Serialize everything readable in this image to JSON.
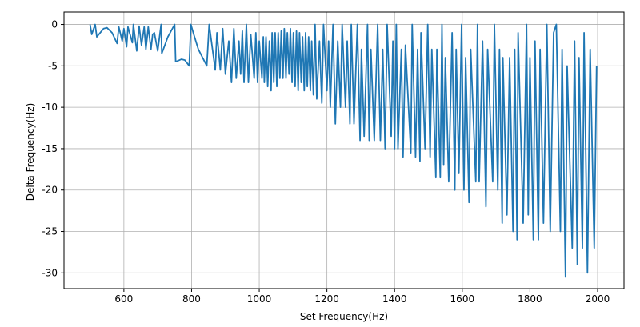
{
  "chart_data": {
    "type": "line",
    "xlabel": "Set Frequency(Hz)",
    "ylabel": "Delta Frequency(Hz)",
    "x": [
      500,
      505,
      515,
      520,
      540,
      550,
      565,
      580,
      585,
      595,
      600,
      608,
      612,
      625,
      628,
      638,
      645,
      652,
      660,
      665,
      672,
      680,
      685,
      690,
      700,
      710,
      712,
      730,
      750,
      753,
      770,
      780,
      793,
      798,
      805,
      820,
      845,
      852,
      870,
      875,
      885,
      892,
      900,
      910,
      918,
      925,
      932,
      940,
      945,
      950,
      955,
      962,
      968,
      975,
      985,
      990,
      995,
      1000,
      1008,
      1012,
      1015,
      1020,
      1025,
      1030,
      1035,
      1038,
      1043,
      1047,
      1052,
      1056,
      1061,
      1065,
      1070,
      1074,
      1079,
      1083,
      1088,
      1092,
      1097,
      1101,
      1106,
      1110,
      1115,
      1119,
      1124,
      1128,
      1133,
      1137,
      1142,
      1146,
      1151,
      1155,
      1160,
      1165,
      1170,
      1178,
      1185,
      1190,
      1200,
      1205,
      1210,
      1218,
      1225,
      1232,
      1240,
      1245,
      1255,
      1260,
      1268,
      1272,
      1280,
      1290,
      1298,
      1302,
      1310,
      1320,
      1325,
      1330,
      1340,
      1350,
      1358,
      1365,
      1372,
      1378,
      1390,
      1395,
      1400,
      1405,
      1410,
      1420,
      1425,
      1432,
      1448,
      1452,
      1462,
      1468,
      1475,
      1478,
      1490,
      1498,
      1505,
      1510,
      1522,
      1525,
      1535,
      1540,
      1545,
      1550,
      1560,
      1570,
      1578,
      1582,
      1590,
      1598,
      1605,
      1610,
      1620,
      1625,
      1640,
      1645,
      1650,
      1660,
      1670,
      1675,
      1690,
      1695,
      1705,
      1710,
      1718,
      1720,
      1732,
      1740,
      1750,
      1755,
      1762,
      1765,
      1780,
      1790,
      1795,
      1800,
      1810,
      1815,
      1825,
      1830,
      1840,
      1850,
      1860,
      1870,
      1878,
      1890,
      1895,
      1905,
      1910,
      1925,
      1932,
      1940,
      1945,
      1955,
      1960,
      1970,
      1978,
      1990,
      1997
    ],
    "series": [
      {
        "color": "#1f77b4",
        "values": [
          0,
          -1.2,
          0,
          -1.5,
          -0.5,
          -0.4,
          -1,
          -2.3,
          -0.3,
          -2,
          -0.5,
          -2.7,
          -0.3,
          -2.2,
          0,
          -3.2,
          -0.2,
          -2.5,
          -0.3,
          -3,
          -0.3,
          -3,
          -1.2,
          -1,
          -3.2,
          0,
          -3.5,
          -1.5,
          0,
          -4.5,
          -4.2,
          -4.3,
          -5,
          0,
          -1,
          -3,
          -5,
          0,
          -5.5,
          -1,
          -5.5,
          -0.5,
          -6,
          -2,
          -7,
          -0.5,
          -6.5,
          -2,
          -6,
          -0.8,
          -7,
          0,
          -7,
          -1.2,
          -6.5,
          -1,
          -7,
          -2,
          -6.5,
          -1.5,
          -7,
          -1.5,
          -7.5,
          -2,
          -8,
          -1,
          -7,
          -1,
          -7.5,
          -1,
          -6.5,
          -0.8,
          -6.5,
          -0.5,
          -6.5,
          -1,
          -6,
          -0.5,
          -7,
          -1,
          -7.5,
          -0.8,
          -8,
          -1,
          -7,
          -1.5,
          -8,
          -1,
          -7.5,
          -1.5,
          -8,
          -2,
          -8.5,
          0,
          -9,
          -2,
          -9.5,
          0,
          -8,
          -2,
          -10,
          0,
          -12,
          -2,
          -10,
          0,
          -10,
          -2,
          -12,
          0,
          -12,
          0,
          -14,
          -3,
          -13.5,
          0,
          -14,
          -3,
          -14,
          0,
          -14,
          -3,
          -15,
          0,
          -13.5,
          -2,
          -15,
          0,
          -15,
          -3,
          -16,
          -2.5,
          -15.5,
          0,
          -16,
          -3,
          -16.5,
          -1,
          -15,
          0,
          -16,
          -3,
          -18.5,
          -3,
          -18.5,
          0,
          -17,
          -4,
          -19,
          -1,
          -20,
          -3,
          -18,
          0,
          -20,
          -4,
          -21.5,
          -3,
          -19,
          0,
          -19,
          -2,
          -22,
          -3,
          -19,
          0,
          -20,
          -3,
          -24,
          -4,
          -23,
          -4,
          -25,
          -3,
          -26,
          -1,
          -24,
          0,
          -23,
          -4,
          -26,
          -2,
          -26,
          -3,
          -24,
          0,
          -25,
          -1,
          0,
          -25,
          -3,
          -30.5,
          -5,
          -27,
          -2,
          -29,
          -4,
          -27,
          -1,
          -30,
          -3,
          -27,
          -5
        ]
      }
    ],
    "xlim": [
      423,
      2078
    ],
    "ylim": [
      -31.9,
      1.5
    ],
    "xticks": [
      600,
      800,
      1000,
      1200,
      1400,
      1600,
      1800,
      2000
    ],
    "yticks": [
      0,
      -5,
      -10,
      -15,
      -20,
      -25,
      -30
    ],
    "grid": true
  }
}
